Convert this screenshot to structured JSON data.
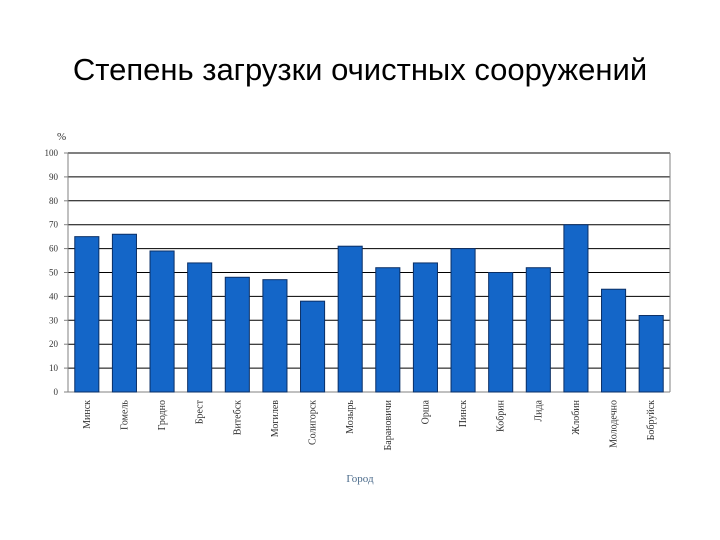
{
  "slide": {
    "title": "Степень загрузки очистных сооружений"
  },
  "chart_data": {
    "type": "bar",
    "title": "",
    "ylabel": "%",
    "xlabel": "Город",
    "ylim": [
      0,
      100
    ],
    "yticks": [
      0,
      10,
      20,
      30,
      40,
      50,
      60,
      70,
      80,
      90,
      100
    ],
    "categories": [
      "Минск",
      "Гомель",
      "Гродно",
      "Брест",
      "Витебск",
      "Могилев",
      "Солигорск",
      "Мозырь",
      "Барановичи",
      "Орша",
      "Пинск",
      "Кобрин",
      "Лида",
      "Жлобин",
      "Молодечно",
      "Бобруйск"
    ],
    "values": [
      65,
      66,
      59,
      54,
      48,
      47,
      38,
      61,
      52,
      54,
      60,
      50,
      52,
      70,
      43,
      32
    ],
    "grid": true,
    "legend": "none",
    "colors": {
      "bar": "#1466c8",
      "bar_edge": "#0a2f66",
      "grid": "#000000",
      "axis_text": "#333333",
      "xlabel_text": "#4a6a8a"
    }
  }
}
